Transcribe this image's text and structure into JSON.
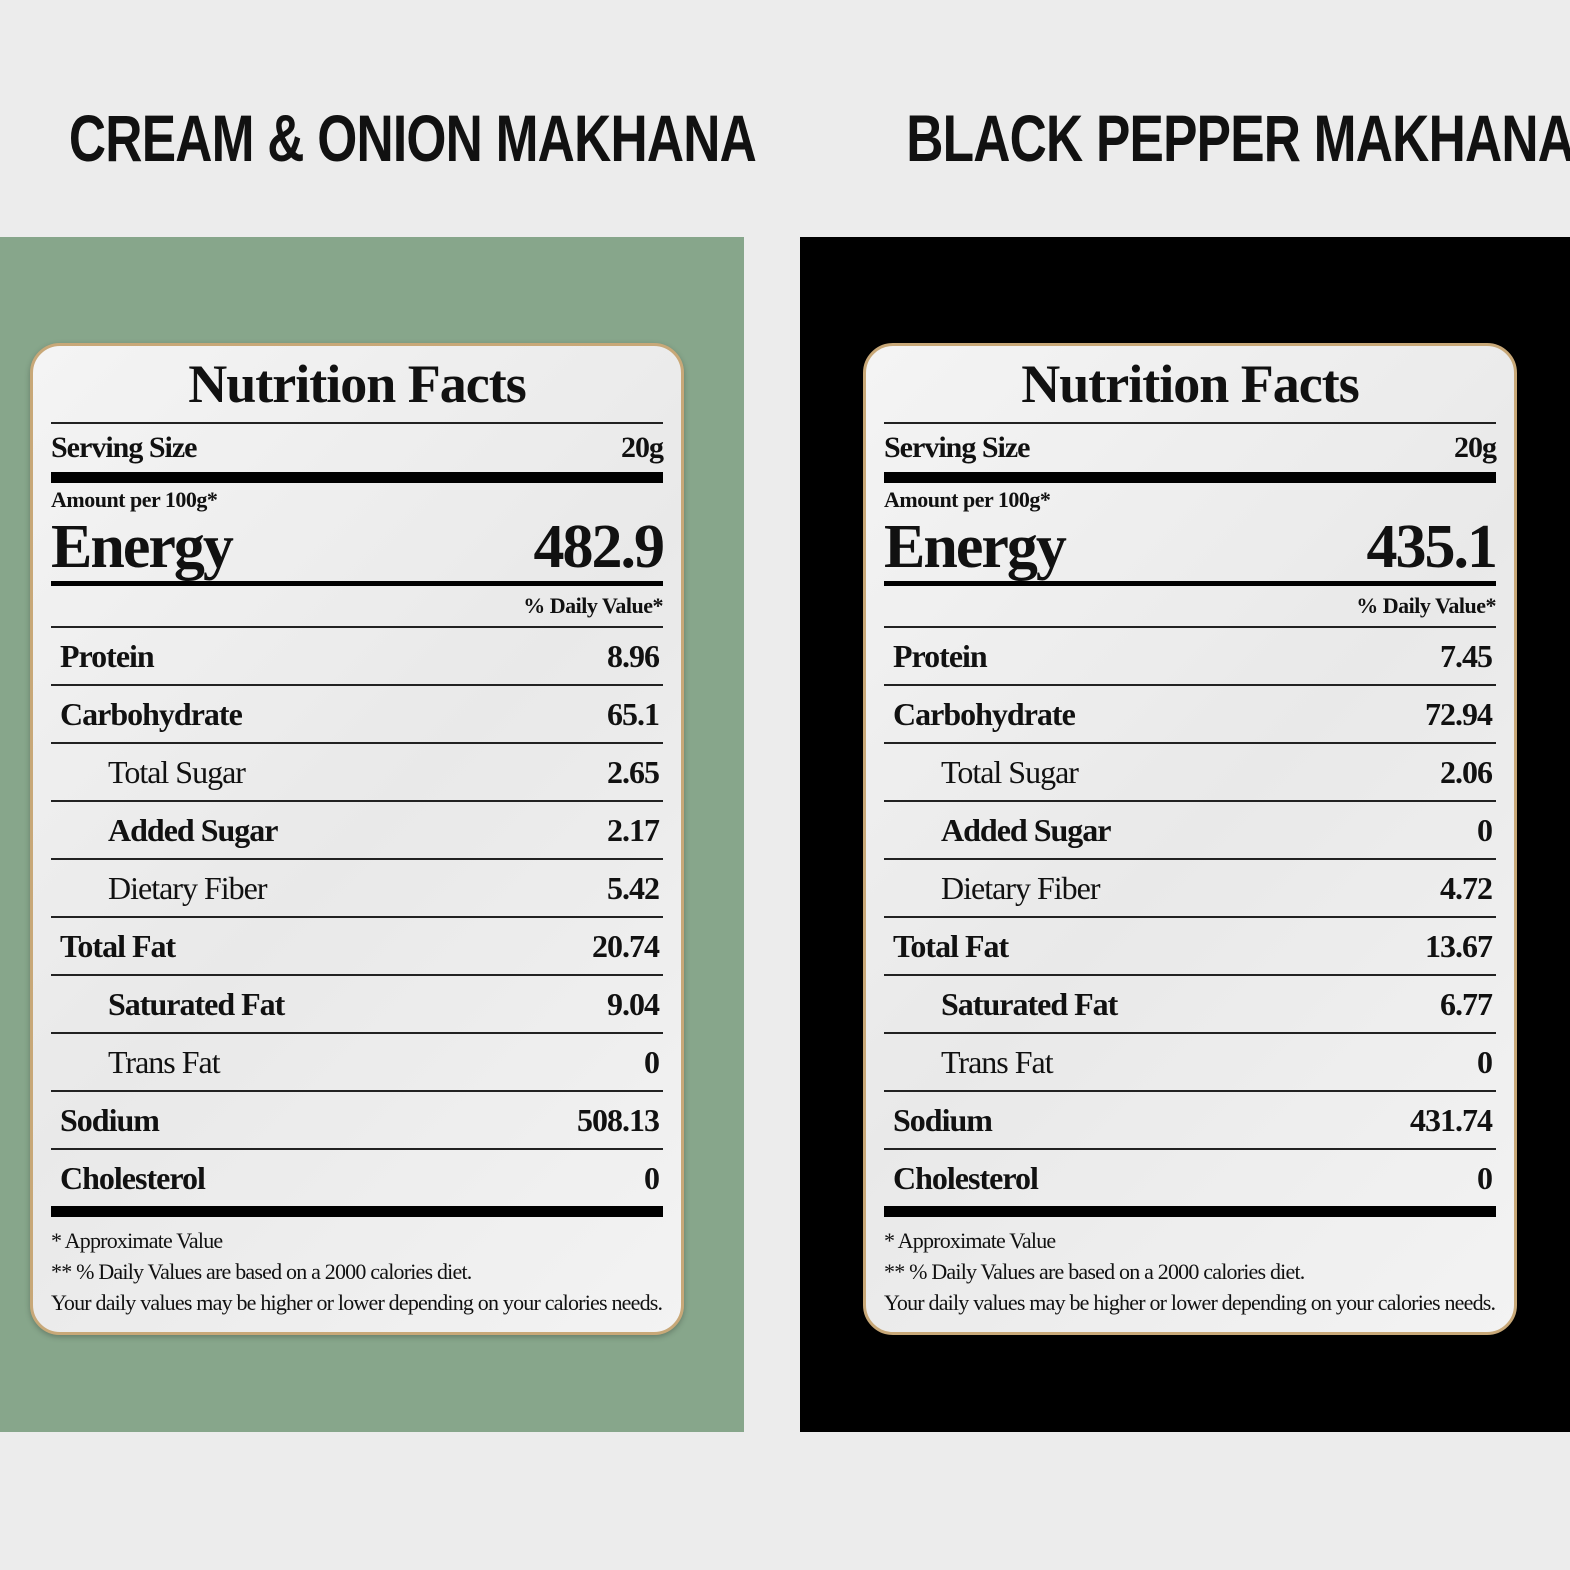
{
  "label": {
    "title": "Nutrition Facts",
    "serving_label": "Serving Size",
    "amount_label": "Amount per 100g*",
    "energy_label": "Energy",
    "daily_value_label": "% Daily Value*",
    "footnotes": [
      "* Approximate Value",
      "** % Daily Values are based on a 2000 calories diet.",
      "Your daily values may be higher or lower depending on your calories needs."
    ]
  },
  "products": [
    {
      "name": "CREAM & ONION MAKHANA",
      "panel_color": "#87a68b",
      "serving_size": "20g",
      "energy": "482.9",
      "nutrients": [
        {
          "name": "Protein",
          "value": "8.96",
          "bold": true,
          "sub": false
        },
        {
          "name": "Carbohydrate",
          "value": "65.1",
          "bold": true,
          "sub": false
        },
        {
          "name": "Total Sugar",
          "value": "2.65",
          "bold": false,
          "sub": true
        },
        {
          "name": "Added Sugar",
          "value": "2.17",
          "bold": true,
          "sub": true
        },
        {
          "name": "Dietary Fiber",
          "value": "5.42",
          "bold": false,
          "sub": true
        },
        {
          "name": "Total Fat",
          "value": "20.74",
          "bold": true,
          "sub": false
        },
        {
          "name": "Saturated Fat",
          "value": "9.04",
          "bold": true,
          "sub": true
        },
        {
          "name": "Trans Fat",
          "value": "0",
          "bold": false,
          "sub": true
        },
        {
          "name": "Sodium",
          "value": "508.13",
          "bold": true,
          "sub": false
        },
        {
          "name": "Cholesterol",
          "value": "0",
          "bold": true,
          "sub": false
        }
      ]
    },
    {
      "name": "BLACK PEPPER MAKHANA",
      "panel_color": "#000000",
      "serving_size": "20g",
      "energy": "435.1",
      "nutrients": [
        {
          "name": "Protein",
          "value": "7.45",
          "bold": true,
          "sub": false
        },
        {
          "name": "Carbohydrate",
          "value": "72.94",
          "bold": true,
          "sub": false
        },
        {
          "name": "Total Sugar",
          "value": "2.06",
          "bold": false,
          "sub": true
        },
        {
          "name": "Added Sugar",
          "value": "0",
          "bold": true,
          "sub": true
        },
        {
          "name": "Dietary Fiber",
          "value": "4.72",
          "bold": false,
          "sub": true
        },
        {
          "name": "Total Fat",
          "value": "13.67",
          "bold": true,
          "sub": false
        },
        {
          "name": "Saturated Fat",
          "value": "6.77",
          "bold": true,
          "sub": true
        },
        {
          "name": "Trans Fat",
          "value": "0",
          "bold": false,
          "sub": true
        },
        {
          "name": "Sodium",
          "value": "431.74",
          "bold": true,
          "sub": false
        },
        {
          "name": "Cholesterol",
          "value": "0",
          "bold": true,
          "sub": false
        }
      ]
    }
  ]
}
